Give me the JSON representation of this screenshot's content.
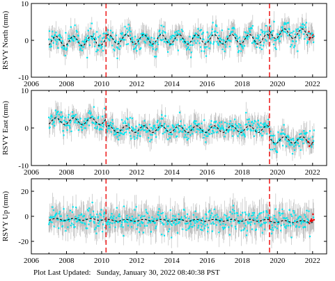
{
  "footer": {
    "label": "Plot Last Updated:",
    "value": "Sunday, January 30, 2022 08:40:38 PST"
  },
  "chart_data": [
    {
      "type": "scatter",
      "station": "RSVY",
      "component": "north",
      "ylabel": "RSVY North (mm)",
      "xlim": [
        2006,
        2022.8
      ],
      "ylim": [
        -10,
        10
      ],
      "xticks": [
        2006,
        2008,
        2010,
        2012,
        2014,
        2016,
        2018,
        2020,
        2022
      ],
      "yticks": [
        -10,
        0,
        10
      ],
      "x_ticklabels_shown": true,
      "data_start": 2007.0,
      "data_end": 2022.08,
      "steps": [
        2010.25,
        2019.55
      ],
      "model_offsets": [
        -0.2,
        0.3,
        1.8
      ],
      "seasonal_amplitude": 1.3,
      "scatter_sd": 1.4,
      "errorbar_sd": 2.2,
      "colors": {
        "data": "#00e5ee",
        "errorbar": "#b8b8b8",
        "model": "#000000",
        "step": "#ee2222",
        "recent": "#ee0000"
      }
    },
    {
      "type": "scatter",
      "station": "RSVY",
      "component": "east",
      "ylabel": "RSVY East (mm)",
      "xlim": [
        2006,
        2022.8
      ],
      "ylim": [
        -10,
        10
      ],
      "xticks": [
        2006,
        2008,
        2010,
        2012,
        2014,
        2016,
        2018,
        2020,
        2022
      ],
      "yticks": [
        -10,
        0,
        10
      ],
      "x_ticklabels_shown": true,
      "data_start": 2007.0,
      "data_end": 2022.08,
      "steps": [
        2010.25,
        2019.55
      ],
      "model_offsets": [
        1.8,
        -0.3,
        -3.2
      ],
      "seasonal_amplitude": 0.9,
      "scatter_sd": 1.3,
      "errorbar_sd": 2.2,
      "colors": {
        "data": "#00e5ee",
        "errorbar": "#b8b8b8",
        "model": "#000000",
        "step": "#ee2222",
        "recent": "#ee0000"
      }
    },
    {
      "type": "scatter",
      "station": "RSVY",
      "component": "up",
      "ylabel": "RSVY Up (mm)",
      "xlim": [
        2006,
        2022.8
      ],
      "ylim": [
        -30,
        30
      ],
      "xticks": [
        2006,
        2008,
        2010,
        2012,
        2014,
        2016,
        2018,
        2020,
        2022
      ],
      "yticks": [
        -20,
        0,
        20
      ],
      "x_ticklabels_shown": true,
      "data_start": 2007.0,
      "data_end": 2022.08,
      "steps": [
        2010.25,
        2019.55
      ],
      "model_offsets": [
        -2.5,
        -3.2,
        -4.2
      ],
      "seasonal_amplitude": 0.8,
      "scatter_sd": 4.5,
      "errorbar_sd": 9.0,
      "colors": {
        "data": "#00e5ee",
        "errorbar": "#b8b8b8",
        "model": "#000000",
        "step": "#ee2222",
        "recent": "#ee0000"
      }
    }
  ]
}
